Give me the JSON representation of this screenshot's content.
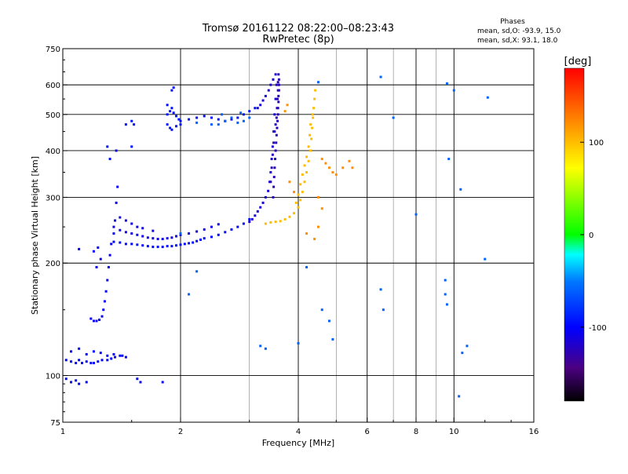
{
  "header": {
    "title": "Tromsø 20161122 08:22:00–08:23:43",
    "subtitle": "RwPretec (8p)",
    "phases_title": "Phases",
    "stats_o": "mean, sd,O:  -93.9, 15.0",
    "stats_x": "mean, sd,X:  93.1, 18.0"
  },
  "chart_data": {
    "type": "scatter",
    "xlabel": "Frequency [MHz]",
    "ylabel": "Stationary phase Virtual Height [km]",
    "xscale": "log",
    "yscale": "log",
    "xlim": [
      1,
      16
    ],
    "ylim": [
      75,
      750
    ],
    "x_ticks": [
      1,
      2,
      4,
      6,
      8,
      10,
      16
    ],
    "y_ticks": [
      75,
      100,
      200,
      300,
      400,
      500,
      600,
      750
    ],
    "grid": true,
    "colorbar": {
      "label": "[deg]",
      "range": [
        -180,
        180
      ],
      "ticks": [
        100,
        0,
        -100
      ]
    },
    "series": [
      {
        "trace": "low-E-layer",
        "phase": -100,
        "points": [
          [
            1.02,
            110
          ],
          [
            1.05,
            109
          ],
          [
            1.08,
            108
          ],
          [
            1.1,
            110
          ],
          [
            1.12,
            108
          ],
          [
            1.15,
            109
          ],
          [
            1.18,
            108
          ],
          [
            1.2,
            108
          ],
          [
            1.23,
            109
          ],
          [
            1.26,
            110
          ],
          [
            1.3,
            110
          ],
          [
            1.33,
            111
          ],
          [
            1.36,
            112
          ],
          [
            1.4,
            113
          ],
          [
            1.42,
            113
          ],
          [
            1.45,
            112
          ],
          [
            1.05,
            116
          ],
          [
            1.1,
            118
          ],
          [
            1.15,
            114
          ],
          [
            1.2,
            116
          ],
          [
            1.25,
            115
          ],
          [
            1.3,
            113
          ],
          [
            1.35,
            114
          ],
          [
            1.02,
            98
          ],
          [
            1.05,
            96
          ],
          [
            1.08,
            97
          ],
          [
            1.1,
            95
          ],
          [
            1.15,
            96
          ],
          [
            1.55,
            98
          ],
          [
            1.58,
            96
          ],
          [
            1.8,
            96
          ]
        ]
      },
      {
        "trace": "O-low-rise",
        "phase": -105,
        "points": [
          [
            1.18,
            142
          ],
          [
            1.2,
            140
          ],
          [
            1.22,
            140
          ],
          [
            1.24,
            141
          ],
          [
            1.26,
            144
          ],
          [
            1.27,
            150
          ],
          [
            1.28,
            158
          ],
          [
            1.29,
            168
          ],
          [
            1.3,
            180
          ],
          [
            1.31,
            195
          ],
          [
            1.32,
            210
          ],
          [
            1.33,
            225
          ],
          [
            1.35,
            240
          ],
          [
            1.36,
            260
          ],
          [
            1.37,
            290
          ],
          [
            1.38,
            320
          ],
          [
            1.37,
            400
          ],
          [
            1.25,
            205
          ],
          [
            1.2,
            215
          ],
          [
            1.22,
            195
          ],
          [
            1.23,
            220
          ],
          [
            1.1,
            218
          ]
        ]
      },
      {
        "trace": "F-main-low-edge",
        "phase": -98,
        "points": [
          [
            1.35,
            228
          ],
          [
            1.4,
            227
          ],
          [
            1.45,
            225
          ],
          [
            1.5,
            225
          ],
          [
            1.55,
            224
          ],
          [
            1.6,
            223
          ],
          [
            1.65,
            222
          ],
          [
            1.7,
            221
          ],
          [
            1.75,
            221
          ],
          [
            1.8,
            221
          ],
          [
            1.85,
            222
          ],
          [
            1.9,
            222
          ],
          [
            1.95,
            223
          ],
          [
            2.0,
            224
          ],
          [
            2.05,
            225
          ],
          [
            2.1,
            226
          ],
          [
            2.15,
            227
          ],
          [
            2.2,
            229
          ],
          [
            2.25,
            231
          ],
          [
            2.3,
            233
          ],
          [
            2.4,
            235
          ],
          [
            2.5,
            238
          ],
          [
            2.6,
            242
          ],
          [
            2.7,
            246
          ],
          [
            2.8,
            250
          ],
          [
            2.9,
            255
          ],
          [
            3.0,
            262
          ]
        ]
      },
      {
        "trace": "F-main-band",
        "phase": -110,
        "points": [
          [
            1.35,
            250
          ],
          [
            1.4,
            245
          ],
          [
            1.45,
            242
          ],
          [
            1.5,
            240
          ],
          [
            1.55,
            238
          ],
          [
            1.6,
            236
          ],
          [
            1.65,
            234
          ],
          [
            1.7,
            233
          ],
          [
            1.75,
            232
          ],
          [
            1.8,
            232
          ],
          [
            1.85,
            233
          ],
          [
            1.9,
            234
          ],
          [
            1.95,
            236
          ],
          [
            2.0,
            238
          ],
          [
            2.1,
            240
          ],
          [
            2.2,
            243
          ],
          [
            2.3,
            246
          ],
          [
            2.4,
            250
          ],
          [
            2.5,
            254
          ],
          [
            1.4,
            265
          ],
          [
            1.45,
            260
          ],
          [
            1.5,
            255
          ],
          [
            1.55,
            250
          ],
          [
            1.6,
            248
          ],
          [
            1.7,
            244
          ]
        ]
      },
      {
        "trace": "F-cusp",
        "phase": -115,
        "points": [
          [
            3.0,
            258
          ],
          [
            3.05,
            262
          ],
          [
            3.1,
            268
          ],
          [
            3.15,
            275
          ],
          [
            3.2,
            282
          ],
          [
            3.25,
            290
          ],
          [
            3.3,
            300
          ],
          [
            3.35,
            312
          ],
          [
            3.38,
            330
          ],
          [
            3.4,
            350
          ],
          [
            3.42,
            380
          ],
          [
            3.44,
            410
          ],
          [
            3.46,
            450
          ],
          [
            3.48,
            500
          ],
          [
            3.5,
            550
          ],
          [
            3.52,
            600
          ],
          [
            3.5,
            640
          ],
          [
            3.45,
            620
          ],
          [
            3.4,
            600
          ],
          [
            3.36,
            580
          ],
          [
            3.3,
            560
          ],
          [
            3.25,
            545
          ],
          [
            3.2,
            530
          ],
          [
            3.15,
            520
          ]
        ]
      },
      {
        "trace": "F-vertical-column",
        "phase": -125,
        "points": [
          [
            3.45,
            300
          ],
          [
            3.46,
            320
          ],
          [
            3.47,
            340
          ],
          [
            3.48,
            360
          ],
          [
            3.49,
            380
          ],
          [
            3.5,
            400
          ],
          [
            3.51,
            420
          ],
          [
            3.52,
            440
          ],
          [
            3.53,
            460
          ],
          [
            3.54,
            480
          ],
          [
            3.55,
            500
          ],
          [
            3.55,
            520
          ],
          [
            3.56,
            540
          ],
          [
            3.56,
            560
          ],
          [
            3.57,
            580
          ],
          [
            3.57,
            600
          ],
          [
            3.57,
            620
          ],
          [
            3.56,
            640
          ],
          [
            3.4,
            330
          ],
          [
            3.42,
            360
          ],
          [
            3.44,
            390
          ],
          [
            3.46,
            420
          ],
          [
            3.48,
            450
          ],
          [
            3.5,
            470
          ],
          [
            3.52,
            490
          ],
          [
            3.53,
            520
          ],
          [
            3.54,
            550
          ],
          [
            3.55,
            580
          ],
          [
            3.55,
            610
          ]
        ]
      },
      {
        "trace": "F-upper-blue",
        "phase": -95,
        "points": [
          [
            1.85,
            500
          ],
          [
            1.88,
            510
          ],
          [
            1.9,
            520
          ],
          [
            1.92,
            505
          ],
          [
            1.95,
            495
          ],
          [
            1.98,
            485
          ],
          [
            2.0,
            480
          ],
          [
            2.1,
            485
          ],
          [
            2.2,
            490
          ],
          [
            2.3,
            495
          ],
          [
            2.4,
            490
          ],
          [
            2.5,
            485
          ],
          [
            2.6,
            480
          ],
          [
            2.7,
            485
          ],
          [
            2.8,
            490
          ],
          [
            2.9,
            500
          ],
          [
            3.0,
            510
          ],
          [
            3.1,
            520
          ],
          [
            1.85,
            470
          ],
          [
            1.88,
            460
          ],
          [
            1.9,
            455
          ],
          [
            1.95,
            465
          ],
          [
            2.0,
            470
          ],
          [
            1.85,
            530
          ],
          [
            1.9,
            580
          ],
          [
            1.92,
            590
          ],
          [
            1.5,
            480
          ],
          [
            1.52,
            470
          ],
          [
            1.45,
            470
          ],
          [
            1.3,
            410
          ],
          [
            1.32,
            380
          ],
          [
            1.5,
            410
          ]
        ]
      },
      {
        "trace": "F-upper-cyan",
        "phase": -60,
        "points": [
          [
            2.5,
            470
          ],
          [
            2.6,
            480
          ],
          [
            2.7,
            490
          ],
          [
            2.8,
            475
          ],
          [
            2.9,
            480
          ],
          [
            3.0,
            490
          ],
          [
            2.4,
            470
          ],
          [
            2.55,
            500
          ],
          [
            2.85,
            505
          ],
          [
            2.2,
            475
          ]
        ]
      },
      {
        "trace": "X-trace",
        "phase": 100,
        "points": [
          [
            3.3,
            255
          ],
          [
            3.4,
            257
          ],
          [
            3.5,
            258
          ],
          [
            3.6,
            259
          ],
          [
            3.7,
            262
          ],
          [
            3.8,
            266
          ],
          [
            3.9,
            272
          ],
          [
            4.0,
            282
          ],
          [
            4.05,
            295
          ],
          [
            4.1,
            310
          ],
          [
            4.15,
            330
          ],
          [
            4.2,
            350
          ],
          [
            4.25,
            375
          ],
          [
            4.3,
            400
          ],
          [
            4.32,
            430
          ],
          [
            4.34,
            460
          ],
          [
            4.36,
            490
          ],
          [
            4.38,
            520
          ],
          [
            4.4,
            550
          ],
          [
            4.42,
            580
          ],
          [
            3.95,
            290
          ],
          [
            4.0,
            305
          ],
          [
            4.05,
            325
          ],
          [
            4.1,
            345
          ],
          [
            4.15,
            365
          ],
          [
            4.2,
            385
          ],
          [
            4.25,
            410
          ],
          [
            4.28,
            440
          ],
          [
            4.3,
            470
          ],
          [
            4.35,
            500
          ]
        ]
      },
      {
        "trace": "X-scatter",
        "phase": 120,
        "points": [
          [
            4.6,
            380
          ],
          [
            4.7,
            370
          ],
          [
            4.8,
            360
          ],
          [
            4.9,
            350
          ],
          [
            5.0,
            345
          ],
          [
            5.2,
            360
          ],
          [
            5.4,
            375
          ],
          [
            5.5,
            360
          ],
          [
            4.5,
            300
          ],
          [
            4.6,
            280
          ],
          [
            4.5,
            250
          ],
          [
            4.4,
            232
          ],
          [
            4.2,
            240
          ],
          [
            3.9,
            310
          ],
          [
            3.8,
            330
          ],
          [
            3.7,
            510
          ],
          [
            3.75,
            530
          ]
        ]
      },
      {
        "trace": "sporadic",
        "phase": -60,
        "points": [
          [
            4.2,
            195
          ],
          [
            4.6,
            150
          ],
          [
            4.8,
            140
          ],
          [
            6.5,
            170
          ],
          [
            6.6,
            150
          ],
          [
            9.5,
            165
          ],
          [
            9.6,
            155
          ],
          [
            10.5,
            115
          ],
          [
            10.3,
            88
          ],
          [
            9.7,
            380
          ],
          [
            6.5,
            630
          ],
          [
            4.5,
            610
          ],
          [
            7.0,
            490
          ],
          [
            3.2,
            120
          ],
          [
            3.3,
            118
          ],
          [
            4.0,
            122
          ],
          [
            2.0,
            240
          ],
          [
            2.1,
            165
          ],
          [
            2.2,
            190
          ],
          [
            9.5,
            180
          ],
          [
            10.0,
            580
          ],
          [
            10.4,
            315
          ],
          [
            12.0,
            205
          ],
          [
            12.2,
            555
          ],
          [
            8.0,
            270
          ],
          [
            9.6,
            605
          ],
          [
            10.8,
            120
          ],
          [
            4.9,
            125
          ]
        ]
      }
    ]
  }
}
